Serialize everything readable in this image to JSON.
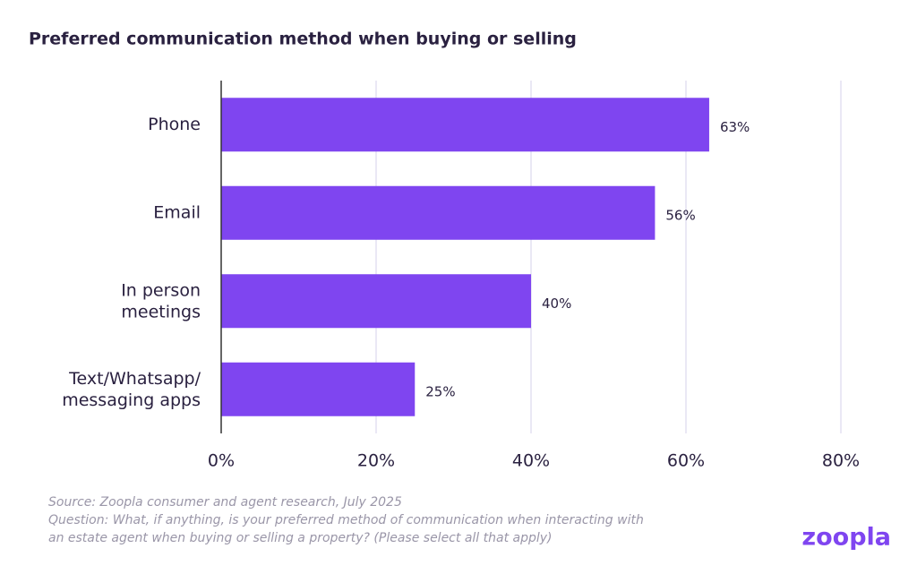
{
  "chart_data": {
    "type": "bar",
    "orientation": "horizontal",
    "title": "Preferred communication method when buying or selling",
    "categories": [
      "Phone",
      "Email",
      "In person\nmeetings",
      "Text/Whatsapp/\nmessaging apps"
    ],
    "values": [
      63,
      56,
      40,
      25
    ],
    "value_labels": [
      "63%",
      "56%",
      "40%",
      "25%"
    ],
    "color": "#7f45f0",
    "xlim": [
      0,
      80
    ],
    "xticks": [
      {
        "value": 0,
        "label": "0%"
      },
      {
        "value": 20,
        "label": "20%"
      },
      {
        "value": 40,
        "label": "40%"
      },
      {
        "value": 60,
        "label": "60%"
      },
      {
        "value": 80,
        "label": "80%"
      }
    ],
    "grid": true,
    "footnotes": [
      "Source:  Zoopla consumer and agent research, July 2025",
      "Question:  What, if anything, is your preferred method of communication when interacting with",
      "an estate agent when buying or selling a property? (Please select all that apply)"
    ],
    "brand": "zoopla"
  }
}
